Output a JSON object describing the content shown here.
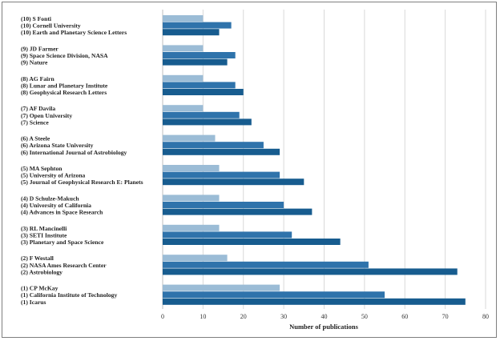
{
  "chart_data": {
    "type": "bar",
    "orientation": "horizontal",
    "xlabel": "Number of publications",
    "xlim": [
      0,
      80
    ],
    "xticks": [
      0,
      10,
      20,
      30,
      40,
      50,
      60,
      70,
      80
    ],
    "grid": "vertical",
    "colors": [
      "#9bbcd6",
      "#2f73ab",
      "#175c8f"
    ],
    "groups": [
      {
        "labels": [
          "(10) S Fonti",
          "(10) Cornell University",
          "(10) Earth and Planetary Science Letters"
        ],
        "values": [
          10,
          17,
          14
        ]
      },
      {
        "labels": [
          "(9) JD Farmer",
          "(9) Space Science Division, NASA",
          "(9) Nature"
        ],
        "values": [
          10,
          18,
          16
        ]
      },
      {
        "labels": [
          "(8) AG Fairn",
          "(8) Lunar and Planetary Institute",
          "(8) Geophysical Research Letters"
        ],
        "values": [
          10,
          18,
          20
        ]
      },
      {
        "labels": [
          "(7) AF Davila",
          "(7) Open University",
          "(7) Science"
        ],
        "values": [
          10,
          19,
          22
        ]
      },
      {
        "labels": [
          "(6) A Steele",
          "(6) Arizona State University",
          "(6) International Journal of Astrobiology"
        ],
        "values": [
          13,
          25,
          29
        ]
      },
      {
        "labels": [
          "(5) MA Sephton",
          "(5) University of Arizona",
          "(5) Journal of Geophysical Research E: Planets"
        ],
        "values": [
          14,
          29,
          35
        ]
      },
      {
        "labels": [
          "(4) D Schulze-Makuch",
          "(4) University of California",
          "(4) Advances in Space Research"
        ],
        "values": [
          14,
          30,
          37
        ]
      },
      {
        "labels": [
          "(3) RL Mancinelli",
          "(3) SETI Institute",
          "(3) Planetary and Space Science"
        ],
        "values": [
          14,
          32,
          44
        ]
      },
      {
        "labels": [
          "(2) F Westall",
          "(2) NASA Ames Research Center",
          "(2) Astrobiology"
        ],
        "values": [
          16,
          51,
          73
        ]
      },
      {
        "labels": [
          "(1) CP McKay",
          "(1) California Institute of Technology",
          "(1) Icarus"
        ],
        "values": [
          29,
          55,
          75
        ]
      }
    ]
  }
}
